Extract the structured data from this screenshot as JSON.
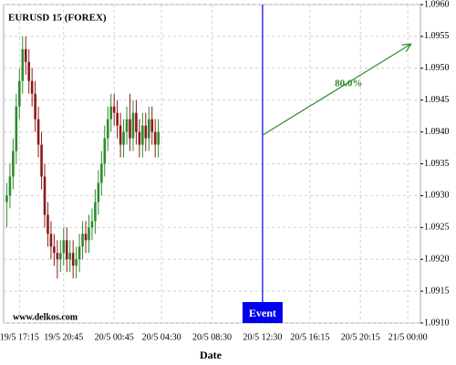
{
  "chart_data": {
    "type": "candlestick",
    "title": "EURUSD 15 (FOREX)",
    "x_label": "Date",
    "watermark": "www.delkos.com",
    "x": [
      1,
      2,
      3,
      4,
      5,
      6,
      7,
      8,
      9,
      10,
      11,
      12,
      13,
      14,
      15,
      16,
      17,
      18,
      19,
      20,
      21,
      22,
      23,
      24,
      25,
      26,
      27,
      28,
      29,
      30,
      31,
      32,
      33,
      34,
      35,
      36,
      37,
      38,
      39,
      40,
      41,
      42,
      43,
      44,
      45,
      46,
      47,
      48,
      49
    ],
    "open": [
      1.0929,
      1.093,
      1.0933,
      1.0937,
      1.0944,
      1.0948,
      1.0953,
      1.0951,
      1.0948,
      1.0946,
      1.0942,
      1.0938,
      1.0933,
      1.0927,
      1.0924,
      1.0922,
      1.0921,
      1.092,
      1.0921,
      1.0923,
      1.092,
      1.0921,
      1.0919,
      1.092,
      1.0922,
      1.0924,
      1.0923,
      1.0925,
      1.0926,
      1.0929,
      1.0932,
      1.0935,
      1.0939,
      1.0942,
      1.0944,
      1.0943,
      1.0941,
      1.0938,
      1.094,
      1.0942,
      1.0939,
      1.0943,
      1.094,
      1.0938,
      1.0941,
      1.0939,
      1.0942,
      1.094,
      1.0938
    ],
    "high": [
      1.0932,
      1.0935,
      1.0939,
      1.0946,
      1.095,
      1.0955,
      1.0955,
      1.0953,
      1.095,
      1.0948,
      1.0944,
      1.094,
      1.0935,
      1.0929,
      1.0926,
      1.0924,
      1.0923,
      1.0923,
      1.0925,
      1.0925,
      1.0923,
      1.0923,
      1.0922,
      1.0924,
      1.0926,
      1.0926,
      1.0927,
      1.0928,
      1.0931,
      1.0934,
      1.0937,
      1.0941,
      1.0944,
      1.0946,
      1.0946,
      1.0945,
      1.0943,
      1.0942,
      1.0944,
      1.0946,
      1.0945,
      1.0945,
      1.0942,
      1.0943,
      1.0943,
      1.0944,
      1.0944,
      1.0942,
      1.0942
    ],
    "low": [
      1.0925,
      1.0928,
      1.0931,
      1.0935,
      1.0942,
      1.0946,
      1.0949,
      1.0946,
      1.0944,
      1.094,
      1.0936,
      1.0931,
      1.0925,
      1.0922,
      1.092,
      1.0919,
      1.0917,
      1.0918,
      1.0919,
      1.0918,
      1.0918,
      1.0917,
      1.0917,
      1.0918,
      1.092,
      1.0921,
      1.0921,
      1.0923,
      1.0924,
      1.0927,
      1.093,
      1.0933,
      1.0937,
      1.094,
      1.0941,
      1.0939,
      1.0936,
      1.0936,
      1.0938,
      1.0937,
      1.0937,
      1.0938,
      1.0936,
      1.0936,
      1.0937,
      1.0937,
      1.0938,
      1.0936,
      1.0936
    ],
    "close": [
      1.093,
      1.0933,
      1.0937,
      1.0944,
      1.0948,
      1.0953,
      1.0951,
      1.0948,
      1.0946,
      1.0942,
      1.0938,
      1.0933,
      1.0927,
      1.0924,
      1.0922,
      1.0921,
      1.092,
      1.0921,
      1.0923,
      1.092,
      1.0921,
      1.0919,
      1.092,
      1.0922,
      1.0924,
      1.0923,
      1.0925,
      1.0926,
      1.0929,
      1.0932,
      1.0935,
      1.0939,
      1.0942,
      1.0944,
      1.0943,
      1.0941,
      1.0938,
      1.094,
      1.0942,
      1.0939,
      1.0943,
      1.094,
      1.0938,
      1.0941,
      1.0939,
      1.0942,
      1.094,
      1.0938,
      1.094
    ],
    "up_color": "#2e8b2e",
    "down_color": "#8b1a1a",
    "xlim": [
      0,
      132
    ],
    "xticks": [
      {
        "value": 5,
        "label": "19/5 17:15"
      },
      {
        "value": 19,
        "label": "19/5 20:45"
      },
      {
        "value": 35,
        "label": "20/5 00:45"
      },
      {
        "value": 50,
        "label": "20/5 04:30"
      },
      {
        "value": 66,
        "label": "20/5 08:30"
      },
      {
        "value": 82,
        "label": "20/5 12:30"
      },
      {
        "value": 97,
        "label": "20/5 16:15"
      },
      {
        "value": 113,
        "label": "20/5 20:15"
      },
      {
        "value": 128,
        "label": "21/5 00:00"
      }
    ],
    "ylim": [
      1.091,
      1.096
    ],
    "yticks": [
      {
        "value": 1.091,
        "label": "1.0910"
      },
      1.0915,
      {
        "value": 1.092,
        "label": "1.0920"
      },
      1.0925,
      {
        "value": 1.093,
        "label": "1.0930"
      },
      1.0935,
      {
        "value": 1.094,
        "label": "1.0940"
      },
      1.0945,
      {
        "value": 1.095,
        "label": "1.0950"
      },
      1.0955,
      {
        "value": 1.096,
        "label": "1.0960"
      }
    ],
    "grid": true,
    "event": {
      "x": 82,
      "label": "Event",
      "color": "#0000ee"
    },
    "arrow": {
      "x": [
        82,
        129
      ],
      "y": [
        1.09395,
        1.09538
      ],
      "label": "80.0%",
      "color": "#2e8b2e"
    }
  }
}
